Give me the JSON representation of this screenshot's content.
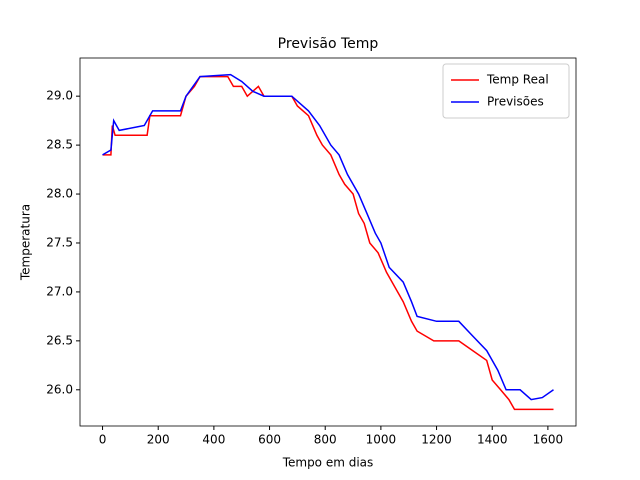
{
  "chart_data": {
    "type": "line",
    "title": "Previsão Temp",
    "x_label": "Tempo em dias",
    "y_label": "Temperatura",
    "xlim": [
      -81,
      1701
    ],
    "ylim": [
      25.63,
      29.39
    ],
    "xticks": [
      0,
      200,
      400,
      600,
      800,
      1000,
      1200,
      1400,
      1600
    ],
    "yticks": [
      {
        "value": 26,
        "label": "26.0"
      },
      26.5,
      {
        "value": 27,
        "label": "27.0"
      },
      27.5,
      {
        "value": 28,
        "label": "28.0"
      },
      28.5,
      {
        "value": 29,
        "label": "29.0"
      }
    ],
    "legend": "upper right",
    "series": [
      {
        "name": "Temp Real",
        "color": "#ff0000",
        "x": [
          0,
          30,
          35,
          45,
          160,
          170,
          280,
          300,
          330,
          350,
          450,
          470,
          500,
          520,
          560,
          580,
          680,
          700,
          740,
          770,
          790,
          820,
          850,
          870,
          900,
          920,
          940,
          960,
          990,
          1020,
          1060,
          1080,
          1110,
          1130,
          1190,
          1280,
          1330,
          1380,
          1400,
          1430,
          1460,
          1480,
          1620
        ],
        "values": [
          28.4,
          28.4,
          28.7,
          28.6,
          28.6,
          28.8,
          28.8,
          29.0,
          29.1,
          29.2,
          29.2,
          29.1,
          29.1,
          29.0,
          29.1,
          29.0,
          29.0,
          28.9,
          28.8,
          28.6,
          28.5,
          28.4,
          28.2,
          28.1,
          28.0,
          27.8,
          27.7,
          27.5,
          27.4,
          27.2,
          27.0,
          26.9,
          26.7,
          26.6,
          26.5,
          26.5,
          26.4,
          26.3,
          26.1,
          26.0,
          25.9,
          25.8,
          25.8
        ]
      },
      {
        "name": "Previsões",
        "color": "#0000ff",
        "x": [
          0,
          30,
          40,
          60,
          150,
          180,
          280,
          300,
          350,
          460,
          500,
          540,
          580,
          680,
          740,
          780,
          820,
          850,
          880,
          920,
          950,
          980,
          1000,
          1030,
          1080,
          1110,
          1130,
          1200,
          1280,
          1330,
          1380,
          1420,
          1450,
          1500,
          1540,
          1580,
          1620
        ],
        "values": [
          28.4,
          28.45,
          28.75,
          28.65,
          28.7,
          28.85,
          28.85,
          29.0,
          29.2,
          29.22,
          29.15,
          29.05,
          29.0,
          29.0,
          28.85,
          28.7,
          28.5,
          28.4,
          28.2,
          28.0,
          27.8,
          27.6,
          27.5,
          27.25,
          27.1,
          26.9,
          26.75,
          26.7,
          26.7,
          26.55,
          26.4,
          26.2,
          26.0,
          26.0,
          25.9,
          25.92,
          26.0
        ]
      }
    ]
  }
}
